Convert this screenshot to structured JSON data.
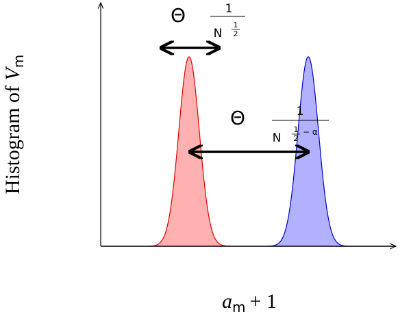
{
  "y_axis_label": {
    "text": "Histogram of",
    "var": "V",
    "sub": "m"
  },
  "x_axis_label": {
    "var": "a",
    "sub": "m",
    "rest": "+ 1"
  },
  "annotations": [
    {
      "theta": "Θ",
      "numerator": "1",
      "base": "N",
      "exp_num": "1",
      "exp_den": "2"
    },
    {
      "theta": "Θ",
      "numerator": "1",
      "base": "N",
      "exp_num": "1",
      "exp_den": "2",
      "exp_rest": "− α"
    }
  ]
}
